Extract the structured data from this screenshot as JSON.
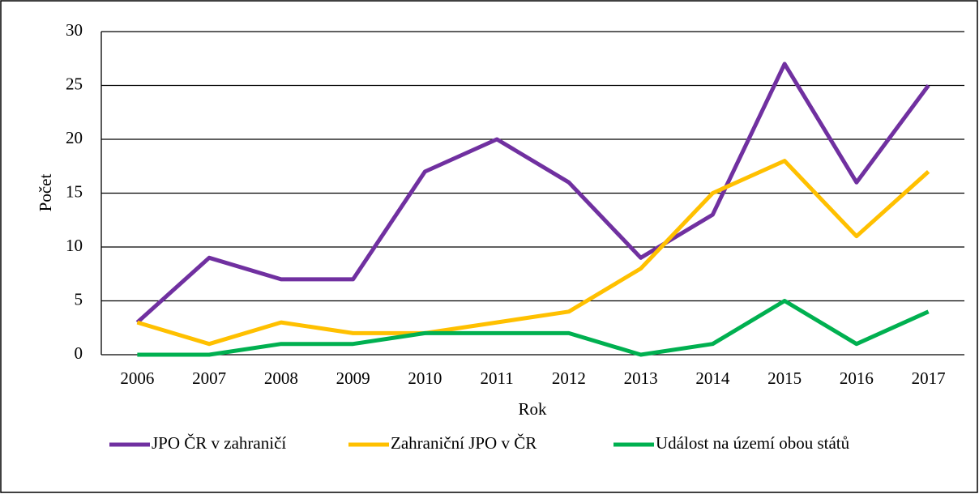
{
  "chart_data": {
    "type": "line",
    "xlabel": "Rok",
    "ylabel": "Počet",
    "categories": [
      "2006",
      "2007",
      "2008",
      "2009",
      "2010",
      "2011",
      "2012",
      "2013",
      "2014",
      "2015",
      "2016",
      "2017"
    ],
    "series": [
      {
        "name": "JPO ČR v zahraničí",
        "color": "#7030a0",
        "values": [
          3,
          9,
          7,
          7,
          17,
          20,
          16,
          9,
          13,
          27,
          16,
          25
        ]
      },
      {
        "name": "Zahraniční JPO v ČR",
        "color": "#ffc000",
        "values": [
          3,
          1,
          3,
          2,
          2,
          3,
          4,
          8,
          15,
          18,
          11,
          17
        ]
      },
      {
        "name": "Událost na území obou států",
        "color": "#00b050",
        "values": [
          0,
          0,
          1,
          1,
          2,
          2,
          2,
          0,
          1,
          5,
          1,
          4
        ]
      }
    ],
    "ylim": [
      0,
      30
    ],
    "yticks": [
      0,
      5,
      10,
      15,
      20,
      25,
      30
    ],
    "grid": true,
    "legend": "bottom"
  }
}
